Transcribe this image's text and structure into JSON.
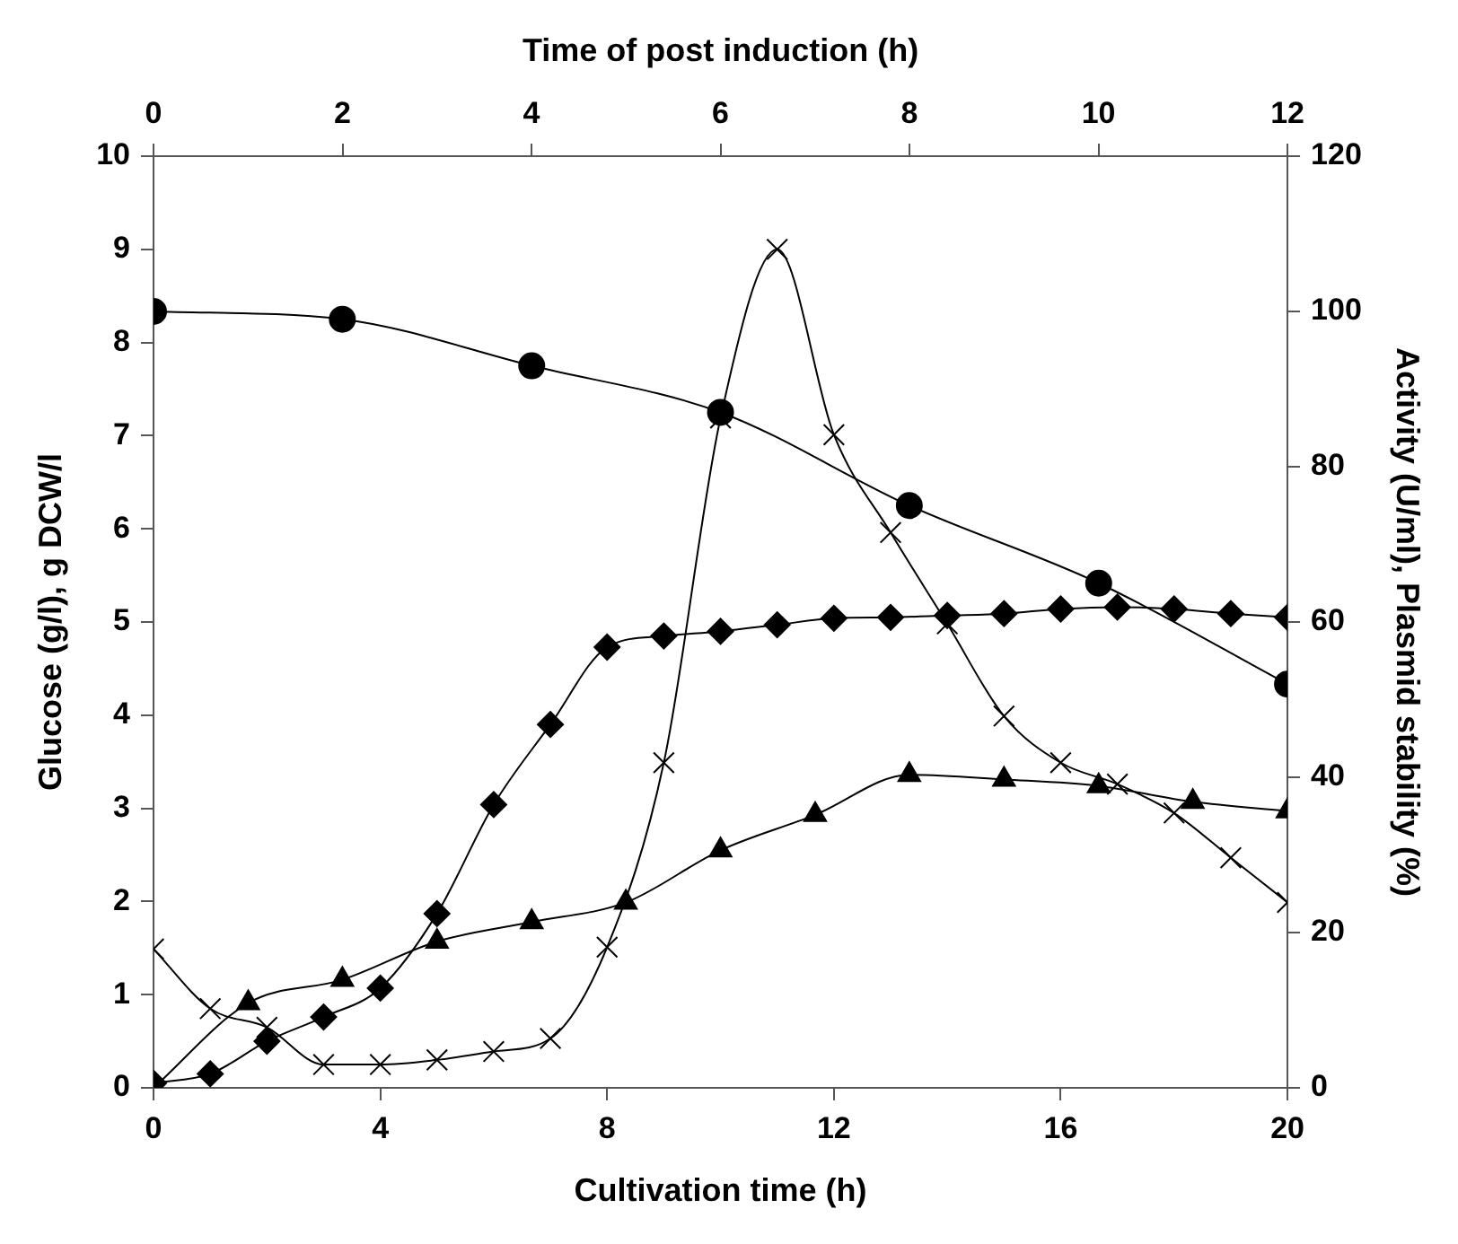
{
  "chart_data": {
    "type": "line",
    "xlabel": "Cultivation time (h)",
    "x2label": "Time of post induction (h)",
    "ylabel": "Glucose (g/l), g DCW/l",
    "y2label": "Activity (U/ml), Plasmid stability (%)",
    "xlim": [
      0,
      20
    ],
    "xticks": [
      0,
      4,
      8,
      12,
      16,
      20
    ],
    "x2lim": [
      0,
      12
    ],
    "x2ticks": [
      0,
      2,
      4,
      6,
      8,
      10,
      12
    ],
    "ylim": [
      0,
      10
    ],
    "yticks": [
      0,
      1,
      2,
      3,
      4,
      5,
      6,
      7,
      8,
      9,
      10
    ],
    "y2lim": [
      0,
      120
    ],
    "y2ticks": [
      0,
      20,
      40,
      60,
      80,
      100,
      120
    ],
    "grid": false,
    "legend": false,
    "series": [
      {
        "color": "#000000",
        "marker": "circle",
        "axis": "y2",
        "x": [
          0,
          3.33,
          6.67,
          10,
          13.33,
          16.67,
          20
        ],
        "values": [
          100,
          99,
          93,
          87,
          75,
          65,
          52
        ]
      },
      {
        "color": "#000000",
        "marker": "diamond",
        "x": [
          0,
          1,
          2,
          3,
          4,
          5,
          6,
          7,
          8,
          9,
          10,
          11,
          12,
          13,
          14,
          15,
          16,
          17,
          18,
          19,
          20
        ],
        "values": [
          0.05,
          0.15,
          0.5,
          0.76,
          1.07,
          1.87,
          3.04,
          3.9,
          4.73,
          4.85,
          4.9,
          4.97,
          5.04,
          5.05,
          5.07,
          5.09,
          5.14,
          5.16,
          5.14,
          5.09,
          5.05
        ]
      },
      {
        "color": "#000000",
        "marker": "triangle",
        "x": [
          0,
          1.67,
          3.33,
          5,
          6.67,
          8.33,
          10,
          11.67,
          13.33,
          15,
          16.67,
          18.33,
          20
        ],
        "values": [
          0,
          0.91,
          1.16,
          1.57,
          1.78,
          1.99,
          2.55,
          2.93,
          3.36,
          3.31,
          3.24,
          3.07,
          2.97
        ]
      },
      {
        "color": "#000000",
        "marker": "cross",
        "x": [
          0,
          1,
          2,
          3,
          4,
          5,
          6,
          7,
          8,
          9,
          10,
          11,
          12,
          13,
          14,
          15,
          16,
          17,
          18,
          19,
          20
        ],
        "values": [
          1.49,
          0.85,
          0.65,
          0.25,
          0.25,
          0.3,
          0.39,
          0.53,
          1.51,
          3.49,
          7.19,
          9.0,
          7.01,
          5.96,
          4.98,
          3.99,
          3.49,
          3.26,
          2.95,
          2.47,
          1.99
        ]
      }
    ]
  }
}
